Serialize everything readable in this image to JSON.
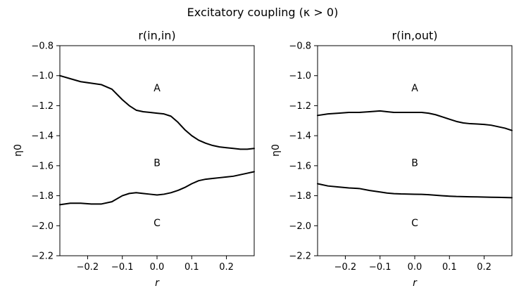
{
  "figure": {
    "suptitle": "Excitatory coupling (κ > 0)"
  },
  "chart_data": [
    {
      "type": "line",
      "title": "r(in,in)",
      "xlabel": "r",
      "ylabel": "η0",
      "xlim": [
        -0.28,
        0.28
      ],
      "ylim": [
        -2.2,
        -0.8
      ],
      "xticks": [
        -0.2,
        -0.1,
        0.0,
        0.1,
        0.2
      ],
      "xticklabels": [
        "−0.2",
        "−0.1",
        "0.0",
        "0.1",
        "0.2"
      ],
      "yticks": [
        -0.8,
        -1.0,
        -1.2,
        -1.4,
        -1.6,
        -1.8,
        -2.0,
        -2.2
      ],
      "yticklabels": [
        "−0.8",
        "−1.0",
        "−1.2",
        "−1.4",
        "−1.6",
        "−1.8",
        "−2.0",
        "−2.2"
      ],
      "grid": false,
      "regions": [
        {
          "label": "A",
          "x": 0.0,
          "y": -1.08
        },
        {
          "label": "B",
          "x": 0.0,
          "y": -1.58
        },
        {
          "label": "C",
          "x": 0.0,
          "y": -1.98
        }
      ],
      "series": [
        {
          "x": [
            -0.28,
            -0.25,
            -0.22,
            -0.19,
            -0.16,
            -0.13,
            -0.1,
            -0.08,
            -0.06,
            -0.04,
            -0.02,
            0.0,
            0.02,
            0.04,
            0.06,
            0.08,
            0.1,
            0.12,
            0.14,
            0.16,
            0.18,
            0.2,
            0.22,
            0.24,
            0.26,
            0.28
          ],
          "y": [
            -1.0,
            -1.02,
            -1.04,
            -1.05,
            -1.06,
            -1.09,
            -1.16,
            -1.2,
            -1.23,
            -1.24,
            -1.245,
            -1.25,
            -1.255,
            -1.27,
            -1.31,
            -1.36,
            -1.4,
            -1.43,
            -1.45,
            -1.465,
            -1.475,
            -1.48,
            -1.485,
            -1.49,
            -1.49,
            -1.485
          ]
        },
        {
          "x": [
            -0.28,
            -0.25,
            -0.22,
            -0.19,
            -0.16,
            -0.13,
            -0.1,
            -0.08,
            -0.06,
            -0.04,
            -0.02,
            0.0,
            0.02,
            0.04,
            0.06,
            0.08,
            0.1,
            0.12,
            0.14,
            0.16,
            0.18,
            0.2,
            0.22,
            0.24,
            0.26,
            0.28
          ],
          "y": [
            -1.86,
            -1.85,
            -1.85,
            -1.855,
            -1.855,
            -1.84,
            -1.8,
            -1.785,
            -1.78,
            -1.785,
            -1.79,
            -1.795,
            -1.79,
            -1.78,
            -1.765,
            -1.745,
            -1.72,
            -1.7,
            -1.69,
            -1.685,
            -1.68,
            -1.675,
            -1.67,
            -1.66,
            -1.65,
            -1.64
          ]
        }
      ]
    },
    {
      "type": "line",
      "title": "r(in,out)",
      "xlabel": "r",
      "ylabel": "η0",
      "xlim": [
        -0.28,
        0.28
      ],
      "ylim": [
        -2.2,
        -0.8
      ],
      "xticks": [
        -0.2,
        -0.1,
        0.0,
        0.1,
        0.2
      ],
      "xticklabels": [
        "−0.2",
        "−0.1",
        "0.0",
        "0.1",
        "0.2"
      ],
      "yticks": [
        -0.8,
        -1.0,
        -1.2,
        -1.4,
        -1.6,
        -1.8,
        -2.0,
        -2.2
      ],
      "yticklabels": [
        "−0.8",
        "−1.0",
        "−1.2",
        "−1.4",
        "−1.6",
        "−1.8",
        "−2.0",
        "−2.2"
      ],
      "grid": false,
      "regions": [
        {
          "label": "A",
          "x": 0.0,
          "y": -1.08
        },
        {
          "label": "B",
          "x": 0.0,
          "y": -1.58
        },
        {
          "label": "C",
          "x": 0.0,
          "y": -1.98
        }
      ],
      "series": [
        {
          "x": [
            -0.28,
            -0.25,
            -0.22,
            -0.19,
            -0.16,
            -0.13,
            -0.1,
            -0.08,
            -0.06,
            -0.04,
            -0.02,
            0.0,
            0.02,
            0.04,
            0.06,
            0.08,
            0.1,
            0.12,
            0.14,
            0.16,
            0.18,
            0.2,
            0.22,
            0.24,
            0.26,
            0.28
          ],
          "y": [
            -1.265,
            -1.255,
            -1.25,
            -1.245,
            -1.245,
            -1.24,
            -1.235,
            -1.24,
            -1.245,
            -1.245,
            -1.245,
            -1.245,
            -1.245,
            -1.25,
            -1.26,
            -1.275,
            -1.29,
            -1.305,
            -1.315,
            -1.32,
            -1.322,
            -1.325,
            -1.33,
            -1.34,
            -1.35,
            -1.365
          ]
        },
        {
          "x": [
            -0.28,
            -0.25,
            -0.22,
            -0.19,
            -0.16,
            -0.13,
            -0.1,
            -0.08,
            -0.06,
            -0.04,
            -0.02,
            0.0,
            0.02,
            0.04,
            0.06,
            0.08,
            0.1,
            0.12,
            0.14,
            0.16,
            0.18,
            0.2,
            0.22,
            0.24,
            0.26,
            0.28
          ],
          "y": [
            -1.72,
            -1.735,
            -1.742,
            -1.748,
            -1.752,
            -1.765,
            -1.775,
            -1.782,
            -1.786,
            -1.788,
            -1.789,
            -1.79,
            -1.791,
            -1.793,
            -1.797,
            -1.8,
            -1.803,
            -1.805,
            -1.806,
            -1.807,
            -1.808,
            -1.809,
            -1.81,
            -1.811,
            -1.812,
            -1.813
          ]
        }
      ]
    }
  ]
}
